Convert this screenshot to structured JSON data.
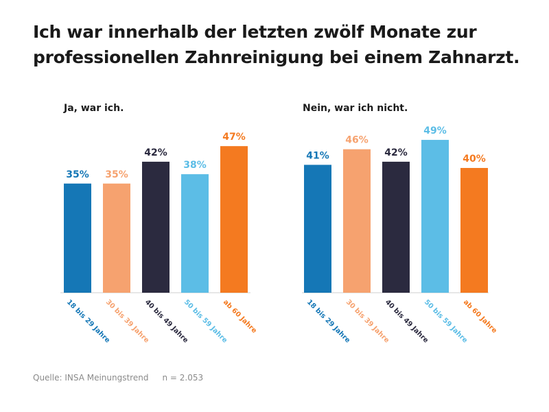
{
  "title_line1": "Ich war innerhalb der letzten zwölf Monate zur",
  "title_line2": "professionellen Zahnreinigung bei einem Zahnarzt.",
  "footer": {
    "source": "Quelle: INSA Meinungstrend",
    "n": "n = 2.053"
  },
  "colors": [
    "#1577b6",
    "#f6a26f",
    "#2b2a3f",
    "#5cbde6",
    "#f47a20"
  ],
  "chart_data": [
    {
      "type": "bar",
      "title": "Ja, war ich.",
      "categories": [
        "18 bis 29 Jahre",
        "30 bis 39 Jahre",
        "40 bis 49 Jahre",
        "50 bis 59 Jahre",
        "ab 60 Jahre"
      ],
      "values": [
        35,
        35,
        42,
        38,
        47
      ],
      "value_labels": [
        "35%",
        "35%",
        "42%",
        "38%",
        "47%"
      ],
      "unit": "%",
      "grid": false,
      "legend": "none"
    },
    {
      "type": "bar",
      "title": "Nein, war ich nicht.",
      "categories": [
        "18 bis 29 Jahre",
        "30 bis 39 Jahre",
        "40 bis 49 Jahre",
        "50 bis 59 Jahre",
        "ab 60 Jahre"
      ],
      "values": [
        41,
        46,
        42,
        49,
        40
      ],
      "value_labels": [
        "41%",
        "46%",
        "42%",
        "49%",
        "40%"
      ],
      "unit": "%",
      "grid": false,
      "legend": "none"
    }
  ]
}
